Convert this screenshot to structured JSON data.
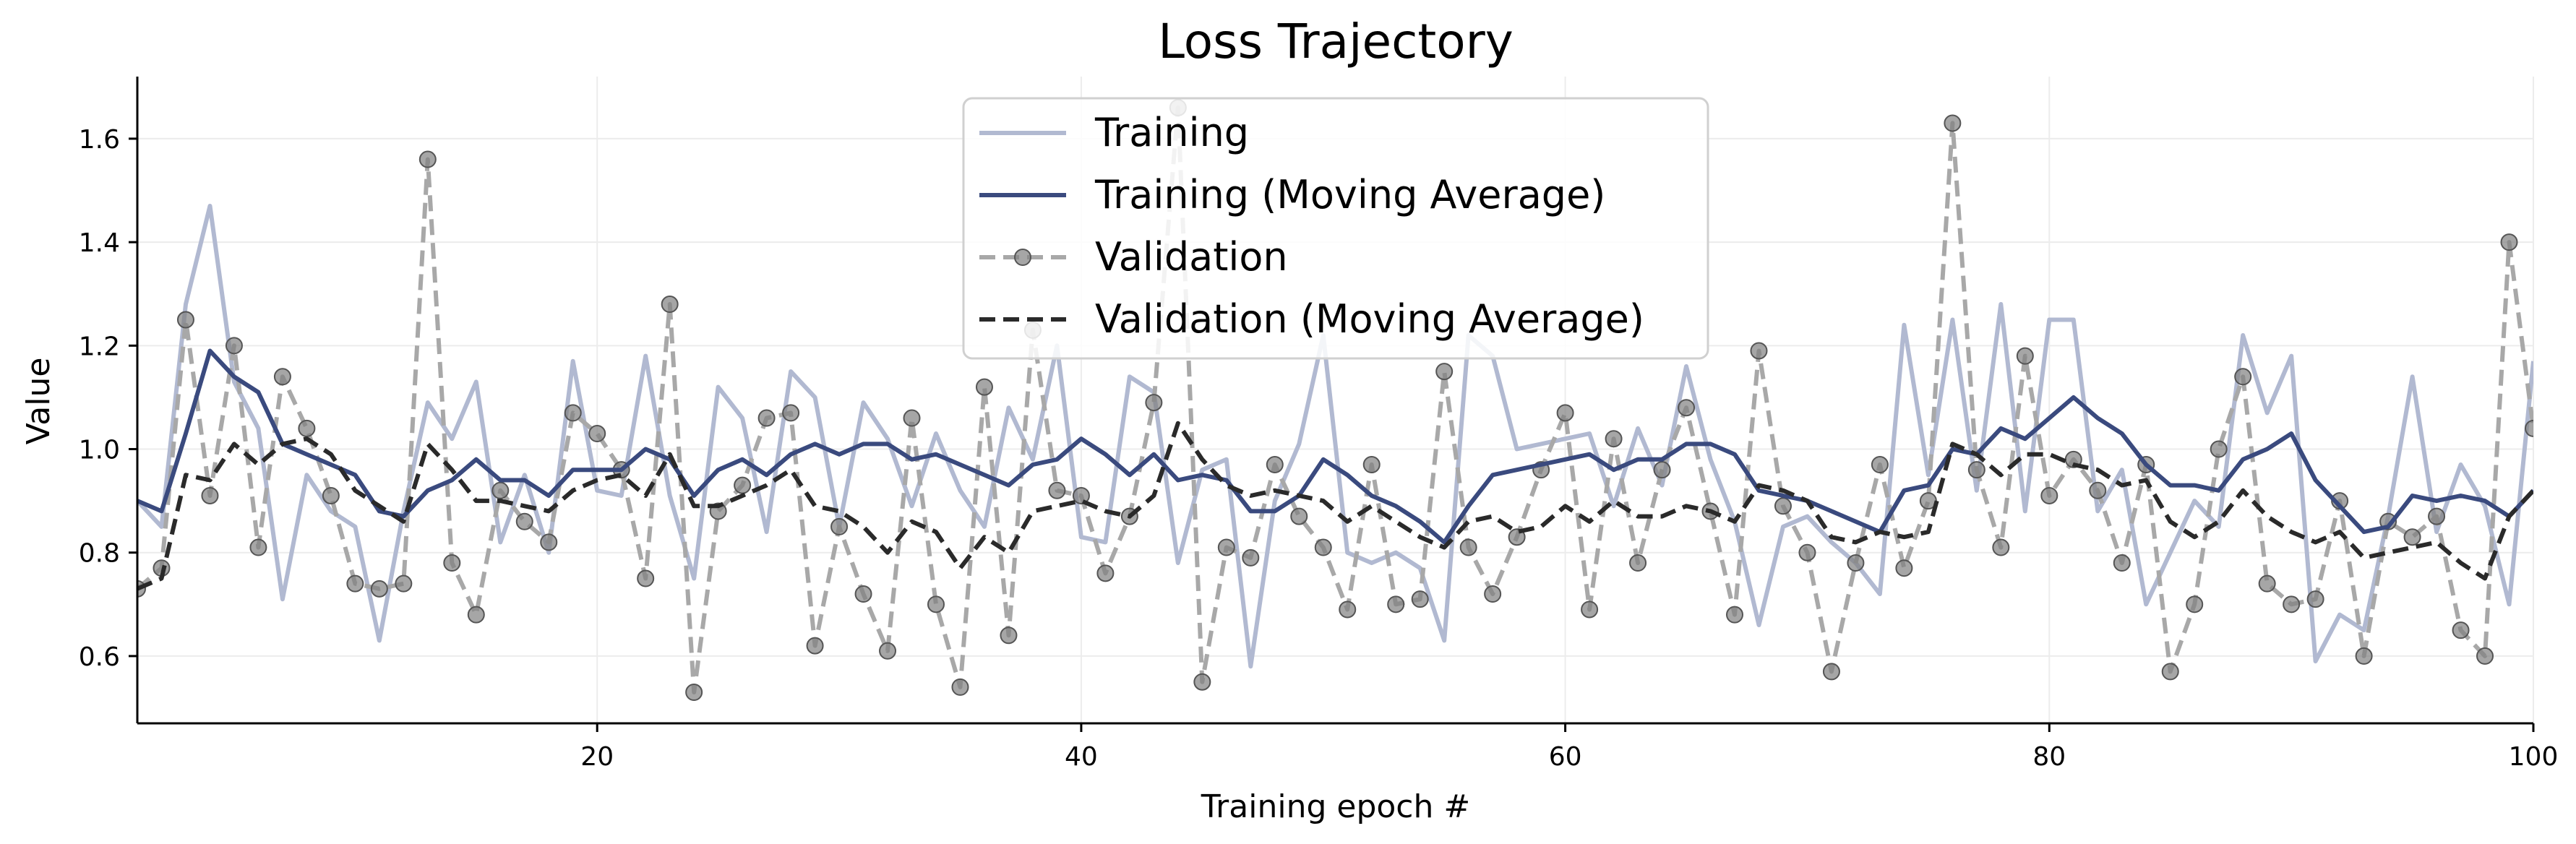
{
  "chart_data": {
    "type": "line",
    "title": "Loss Trajectory",
    "xlabel": "Training epoch #",
    "ylabel": "Value",
    "xlim": [
      1,
      100
    ],
    "ylim": [
      0.47,
      1.72
    ],
    "xticks": [
      20,
      40,
      60,
      80,
      100
    ],
    "yticks": [
      0.6,
      0.8,
      1.0,
      1.2,
      1.4,
      1.6
    ],
    "grid": true,
    "legend_position": "top-center",
    "colors": {
      "training": "#b1b9d1",
      "training_ma": "#3a4a7e",
      "validation": "#a8a8a8",
      "validation_ma": "#2a2a2a"
    },
    "x": [
      1,
      2,
      3,
      4,
      5,
      6,
      7,
      8,
      9,
      10,
      11,
      12,
      13,
      14,
      15,
      16,
      17,
      18,
      19,
      20,
      21,
      22,
      23,
      24,
      25,
      26,
      27,
      28,
      29,
      30,
      31,
      32,
      33,
      34,
      35,
      36,
      37,
      38,
      39,
      40,
      41,
      42,
      43,
      44,
      45,
      46,
      47,
      48,
      49,
      50,
      51,
      52,
      53,
      54,
      55,
      56,
      57,
      58,
      59,
      60,
      61,
      62,
      63,
      64,
      65,
      66,
      67,
      68,
      69,
      70,
      71,
      72,
      73,
      74,
      75,
      76,
      77,
      78,
      79,
      80,
      81,
      82,
      83,
      84,
      85,
      86,
      87,
      88,
      89,
      90,
      91,
      92,
      93,
      94,
      95,
      96,
      97,
      98,
      99,
      100
    ],
    "series": [
      {
        "name": "Training",
        "style": "solid",
        "values": [
          0.9,
          0.85,
          1.28,
          1.47,
          1.13,
          1.04,
          0.71,
          0.95,
          0.88,
          0.85,
          0.63,
          0.88,
          1.09,
          1.02,
          1.13,
          0.82,
          0.95,
          0.8,
          1.17,
          0.92,
          0.91,
          1.18,
          0.91,
          0.75,
          1.12,
          1.06,
          0.84,
          1.15,
          1.1,
          0.85,
          1.09,
          1.02,
          0.89,
          1.03,
          0.92,
          0.85,
          1.08,
          0.98,
          1.2,
          0.83,
          0.82,
          1.14,
          1.11,
          0.78,
          0.96,
          0.98,
          0.58,
          0.9,
          1.01,
          1.22,
          0.8,
          0.78,
          0.8,
          0.77,
          0.63,
          1.22,
          1.18,
          1.0,
          1.01,
          1.02,
          1.03,
          0.89,
          1.04,
          0.93,
          1.16,
          0.98,
          0.86,
          0.66,
          0.85,
          0.87,
          0.82,
          0.78,
          0.72,
          1.24,
          0.95,
          1.25,
          0.92,
          1.28,
          0.88,
          1.25,
          1.25,
          0.88,
          0.96,
          0.7,
          0.8,
          0.9,
          0.85,
          1.22,
          1.07,
          1.18,
          0.59,
          0.68,
          0.65,
          0.87,
          1.14,
          0.84,
          0.97,
          0.89,
          0.7,
          1.17
        ]
      },
      {
        "name": "Training (Moving Average)",
        "style": "solid",
        "values": [
          0.9,
          0.88,
          1.03,
          1.19,
          1.14,
          1.11,
          1.01,
          0.99,
          0.97,
          0.95,
          0.88,
          0.87,
          0.92,
          0.94,
          0.98,
          0.94,
          0.94,
          0.91,
          0.96,
          0.96,
          0.96,
          1.0,
          0.98,
          0.91,
          0.96,
          0.98,
          0.95,
          0.99,
          1.01,
          0.99,
          1.01,
          1.01,
          0.98,
          0.99,
          0.97,
          0.95,
          0.93,
          0.97,
          0.98,
          1.02,
          0.99,
          0.95,
          0.99,
          0.94,
          0.95,
          0.94,
          0.88,
          0.88,
          0.91,
          0.98,
          0.95,
          0.91,
          0.89,
          0.86,
          0.82,
          0.89,
          0.95,
          0.96,
          0.97,
          0.98,
          0.99,
          0.96,
          0.98,
          0.98,
          1.01,
          1.01,
          0.99,
          0.92,
          0.91,
          0.9,
          0.88,
          0.86,
          0.84,
          0.92,
          0.93,
          1.0,
          0.99,
          1.04,
          1.02,
          1.06,
          1.1,
          1.06,
          1.03,
          0.97,
          0.93,
          0.93,
          0.92,
          0.98,
          1.0,
          1.03,
          0.94,
          0.89,
          0.84,
          0.85,
          0.91,
          0.9,
          0.91,
          0.9,
          0.87,
          0.92
        ]
      },
      {
        "name": "Validation",
        "style": "dashed-markers",
        "values": [
          0.73,
          0.77,
          1.25,
          0.91,
          1.2,
          0.81,
          1.14,
          1.04,
          0.91,
          0.74,
          0.73,
          0.74,
          1.56,
          0.78,
          0.68,
          0.92,
          0.86,
          0.82,
          1.07,
          1.03,
          0.96,
          0.75,
          1.28,
          0.53,
          0.88,
          0.93,
          1.06,
          1.07,
          0.62,
          0.85,
          0.72,
          0.61,
          1.06,
          0.7,
          0.54,
          1.12,
          0.64,
          1.23,
          0.92,
          0.91,
          0.76,
          0.87,
          1.09,
          1.66,
          0.55,
          0.81,
          0.79,
          0.97,
          0.87,
          0.81,
          0.69,
          0.97,
          0.7,
          0.71,
          1.15,
          0.81,
          0.72,
          0.83,
          0.96,
          1.07,
          0.69,
          1.02,
          0.78,
          0.96,
          1.08,
          0.88,
          0.68,
          1.19,
          0.89,
          0.8,
          0.57,
          0.78,
          0.97,
          0.77,
          0.9,
          1.63,
          0.96,
          0.81,
          1.18,
          0.91,
          0.98,
          0.92,
          0.78,
          0.97,
          0.57,
          0.7,
          1.0,
          1.14,
          0.74,
          0.7,
          0.71,
          0.9,
          0.6,
          0.86,
          0.83,
          0.87,
          0.65,
          0.6,
          1.4,
          1.04
        ]
      },
      {
        "name": "Validation (Moving Average)",
        "style": "dashed",
        "values": [
          0.73,
          0.75,
          0.95,
          0.94,
          1.01,
          0.97,
          1.01,
          1.02,
          0.99,
          0.92,
          0.89,
          0.86,
          1.01,
          0.96,
          0.9,
          0.9,
          0.89,
          0.88,
          0.92,
          0.94,
          0.95,
          0.91,
          0.99,
          0.89,
          0.89,
          0.91,
          0.93,
          0.96,
          0.89,
          0.88,
          0.85,
          0.8,
          0.86,
          0.84,
          0.77,
          0.83,
          0.8,
          0.88,
          0.89,
          0.9,
          0.88,
          0.87,
          0.91,
          1.05,
          0.98,
          0.93,
          0.91,
          0.92,
          0.91,
          0.9,
          0.86,
          0.89,
          0.86,
          0.83,
          0.81,
          0.86,
          0.87,
          0.84,
          0.85,
          0.89,
          0.86,
          0.9,
          0.87,
          0.87,
          0.89,
          0.88,
          0.86,
          0.93,
          0.92,
          0.9,
          0.83,
          0.82,
          0.84,
          0.83,
          0.84,
          1.01,
          0.99,
          0.95,
          0.99,
          0.99,
          0.97,
          0.96,
          0.93,
          0.94,
          0.86,
          0.83,
          0.86,
          0.92,
          0.87,
          0.84,
          0.82,
          0.84,
          0.79,
          0.8,
          0.81,
          0.82,
          0.78,
          0.75,
          0.87,
          0.92
        ]
      }
    ]
  }
}
